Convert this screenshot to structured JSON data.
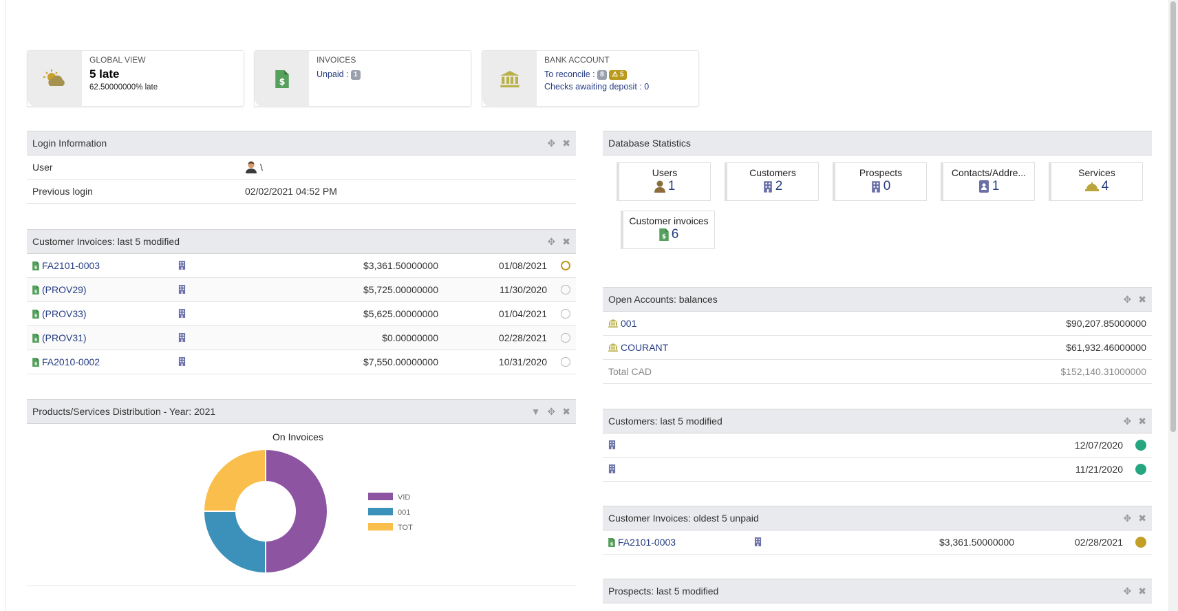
{
  "colors": {
    "link": "#263c82",
    "invoice_icon": "#55a05c",
    "bank_icon": "#b9b24c",
    "building_icon": "#6a6fa7",
    "warning": "#b99a1b",
    "status_green": "#25a580"
  },
  "infoboxes": {
    "global": {
      "title": "GLOBAL VIEW",
      "big": "5 late",
      "small": "62.50000000% late"
    },
    "invoices": {
      "title": "INVOICES",
      "unpaid_label": "Unpaid :",
      "unpaid_badge": "1"
    },
    "bank": {
      "title": "BANK ACCOUNT",
      "reconcile_label": "To reconcile :",
      "reconcile_badge": "8",
      "reconcile_warn": "5",
      "checks_label": "Checks awaiting deposit : 0"
    }
  },
  "login": {
    "title": "Login Information",
    "user_label": "User",
    "user_value": "\\",
    "prev_label": "Previous login",
    "prev_value": "02/02/2021 04:52 PM"
  },
  "cust_invoices": {
    "title": "Customer Invoices: last 5 modified",
    "rows": [
      {
        "ref": "FA2101-0003",
        "amount": "$3,361.50000000",
        "date": "01/08/2021"
      },
      {
        "ref": "(PROV29)",
        "amount": "$5,725.00000000",
        "date": "11/30/2020"
      },
      {
        "ref": "(PROV33)",
        "amount": "$5,625.00000000",
        "date": "01/04/2021"
      },
      {
        "ref": "(PROV31)",
        "amount": "$0.00000000",
        "date": "02/28/2021"
      },
      {
        "ref": "FA2010-0002",
        "amount": "$7,550.00000000",
        "date": "10/31/2020"
      }
    ]
  },
  "distribution": {
    "title": "Products/Services Distribution - Year: 2021"
  },
  "chart_data": {
    "type": "pie",
    "title": "On Invoices",
    "series": [
      {
        "name": "VID",
        "value": 50,
        "color": "#8c54a1"
      },
      {
        "name": "001",
        "value": 25,
        "color": "#3b91b9"
      },
      {
        "name": "TOT",
        "value": 25,
        "color": "#f9be4c"
      }
    ],
    "donut": true,
    "legend": "right"
  },
  "db_stats": {
    "title": "Database Statistics",
    "boxes": [
      {
        "label": "Users",
        "value": "1",
        "icon": "user-icon"
      },
      {
        "label": "Customers",
        "value": "2",
        "icon": "building-icon"
      },
      {
        "label": "Prospects",
        "value": "0",
        "icon": "building-icon"
      },
      {
        "label": "Contacts/Addre...",
        "value": "1",
        "icon": "contact-card-icon"
      },
      {
        "label": "Services",
        "value": "4",
        "icon": "service-bell-icon"
      },
      {
        "label": "Customer invoices",
        "value": "6",
        "icon": "invoice-icon"
      }
    ]
  },
  "open_accounts": {
    "title": "Open Accounts: balances",
    "rows": [
      {
        "name": "001",
        "balance": "$90,207.85000000"
      },
      {
        "name": "COURANT",
        "balance": "$61,932.46000000"
      }
    ],
    "total_label": "Total CAD",
    "total_value": "$152,140.31000000"
  },
  "customers": {
    "title": "Customers: last 5 modified",
    "rows": [
      {
        "date": "12/07/2020"
      },
      {
        "date": "11/21/2020"
      }
    ]
  },
  "oldest_unpaid": {
    "title": "Customer Invoices: oldest 5 unpaid",
    "rows": [
      {
        "ref": "FA2101-0003",
        "amount": "$3,361.50000000",
        "date": "02/28/2021"
      }
    ]
  },
  "prospects": {
    "title": "Prospects: last 5 modified"
  }
}
